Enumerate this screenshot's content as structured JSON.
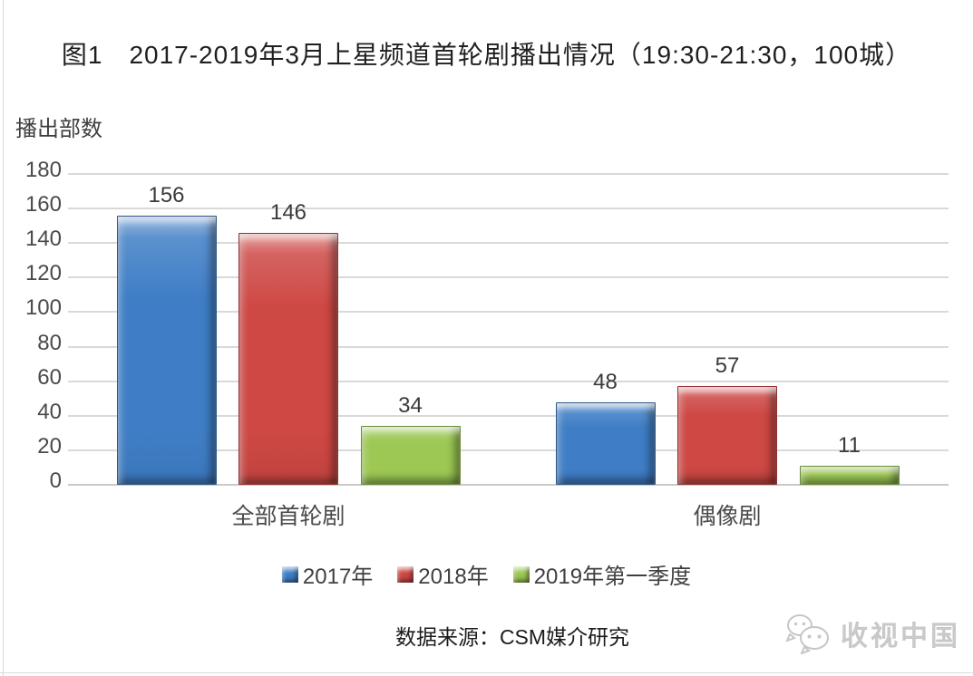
{
  "title": "图1　2017-2019年3月上星频道首轮剧播出情况（19:30-21:30，100城）",
  "chart_data": {
    "type": "bar",
    "title": "图1 2017-2019年3月上星频道首轮剧播出情况（19:30-21:30，100城）",
    "ylabel": "播出部数",
    "xlabel": "",
    "categories": [
      "全部首轮剧",
      "偶像剧"
    ],
    "series": [
      {
        "name": "2017年",
        "color": "#3F7EC6",
        "values": [
          156,
          48
        ]
      },
      {
        "name": "2018年",
        "color": "#CE4844",
        "values": [
          146,
          57
        ]
      },
      {
        "name": "2019年第一季度",
        "color": "#9CC853",
        "values": [
          34,
          11
        ]
      }
    ],
    "ylim": [
      0,
      180
    ],
    "ytick_step": 20,
    "grid": true,
    "gridline_color": "#d9d9d9",
    "legend_position": "bottom"
  },
  "footer": {
    "source": "数据来源：CSM媒介研究",
    "watermark": "收视中国"
  }
}
